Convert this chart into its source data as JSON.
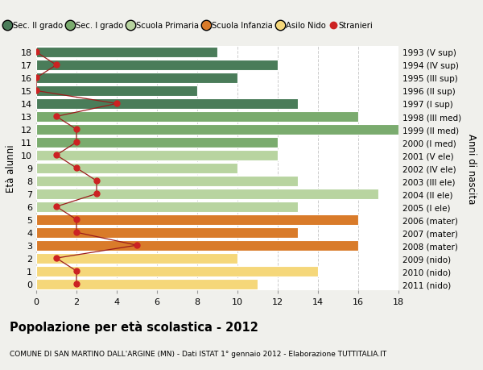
{
  "ages": [
    18,
    17,
    16,
    15,
    14,
    13,
    12,
    11,
    10,
    9,
    8,
    7,
    6,
    5,
    4,
    3,
    2,
    1,
    0
  ],
  "right_labels": [
    "1993 (V sup)",
    "1994 (IV sup)",
    "1995 (III sup)",
    "1996 (II sup)",
    "1997 (I sup)",
    "1998 (III med)",
    "1999 (II med)",
    "2000 (I med)",
    "2001 (V ele)",
    "2002 (IV ele)",
    "2003 (III ele)",
    "2004 (II ele)",
    "2005 (I ele)",
    "2006 (mater)",
    "2007 (mater)",
    "2008 (mater)",
    "2009 (nido)",
    "2010 (nido)",
    "2011 (nido)"
  ],
  "bar_values": [
    9,
    12,
    10,
    8,
    13,
    16,
    18,
    12,
    12,
    10,
    13,
    17,
    13,
    16,
    13,
    16,
    10,
    14,
    11
  ],
  "bar_colors": [
    "#4a7c59",
    "#4a7c59",
    "#4a7c59",
    "#4a7c59",
    "#4a7c59",
    "#7aab6e",
    "#7aab6e",
    "#7aab6e",
    "#b8d4a0",
    "#b8d4a0",
    "#b8d4a0",
    "#b8d4a0",
    "#b8d4a0",
    "#d97b2a",
    "#d97b2a",
    "#d97b2a",
    "#f5d77a",
    "#f5d77a",
    "#f5d77a"
  ],
  "stranieri_values": [
    0,
    1,
    0,
    0,
    4,
    1,
    2,
    2,
    1,
    2,
    3,
    3,
    1,
    2,
    2,
    5,
    1,
    2,
    2
  ],
  "legend_labels": [
    "Sec. II grado",
    "Sec. I grado",
    "Scuola Primaria",
    "Scuola Infanzia",
    "Asilo Nido",
    "Stranieri"
  ],
  "legend_colors": [
    "#4a7c59",
    "#7aab6e",
    "#b8d4a0",
    "#d97b2a",
    "#f5d77a",
    "#cc2222"
  ],
  "title": "Popolazione per età scolastica - 2012",
  "subtitle": "COMUNE DI SAN MARTINO DALL'ARGINE (MN) - Dati ISTAT 1° gennaio 2012 - Elaborazione TUTTITALIA.IT",
  "ylabel": "Età alunni",
  "ylabel_right": "Anni di nascita",
  "xlim": [
    0,
    18
  ],
  "xticks": [
    0,
    2,
    4,
    6,
    8,
    10,
    12,
    14,
    16,
    18
  ],
  "bg_color": "#f0f0ec",
  "plot_bg_color": "#ffffff",
  "grid_color": "#cccccc",
  "stranieri_line_color": "#9b1c1c",
  "stranieri_marker_color": "#cc2222"
}
